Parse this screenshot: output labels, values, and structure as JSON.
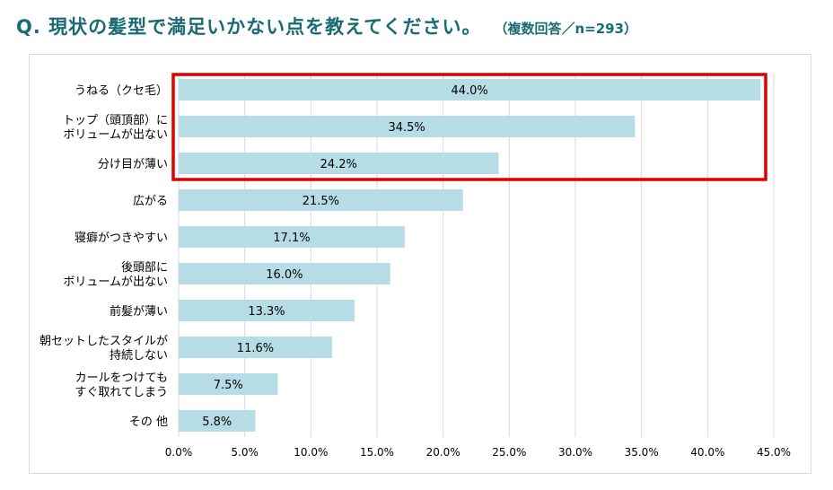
{
  "header": {
    "question": "Q. 現状の髪型で満足いかない点を教えてください。",
    "sample": "（複数回答／n=293）"
  },
  "colors": {
    "bar": "#b6dde5",
    "highlight": "#e00000",
    "grid": "#d9d9d9",
    "title": "#1a6b73"
  },
  "chart_data": {
    "type": "bar",
    "orientation": "horizontal",
    "title": "現状の髪型で満足いかない点を教えてください。",
    "categories": [
      [
        "うねる（クセ毛）"
      ],
      [
        "トップ（頭頂部）に",
        "ボリュームが出ない"
      ],
      [
        "分け目が薄い"
      ],
      [
        "広がる"
      ],
      [
        "寝癖がつきやすい"
      ],
      [
        "後頭部に",
        "ボリュームが出ない"
      ],
      [
        "前髪が薄い"
      ],
      [
        "朝セットしたスタイルが",
        "持続しない"
      ],
      [
        "カールをつけても",
        "すぐ取れてしまう"
      ],
      [
        "その 他"
      ]
    ],
    "values": [
      44.0,
      34.5,
      24.2,
      21.5,
      17.1,
      16.0,
      13.3,
      11.6,
      7.5,
      5.8
    ],
    "value_labels": [
      "44.0%",
      "34.5%",
      "24.2%",
      "21.5%",
      "17.1%",
      "16.0%",
      "13.3%",
      "11.6%",
      "7.5%",
      "5.8%"
    ],
    "xlim": [
      0,
      45
    ],
    "x_ticks": [
      0,
      5,
      10,
      15,
      20,
      25,
      30,
      35,
      40,
      45
    ],
    "x_tick_labels": [
      "0.0%",
      "5.0%",
      "10.0%",
      "15.0%",
      "20.0%",
      "25.0%",
      "30.0%",
      "35.0%",
      "40.0%",
      "45.0%"
    ],
    "highlighted_categories": [
      0,
      1,
      2
    ],
    "grid": true,
    "xlabel": "",
    "ylabel": ""
  }
}
